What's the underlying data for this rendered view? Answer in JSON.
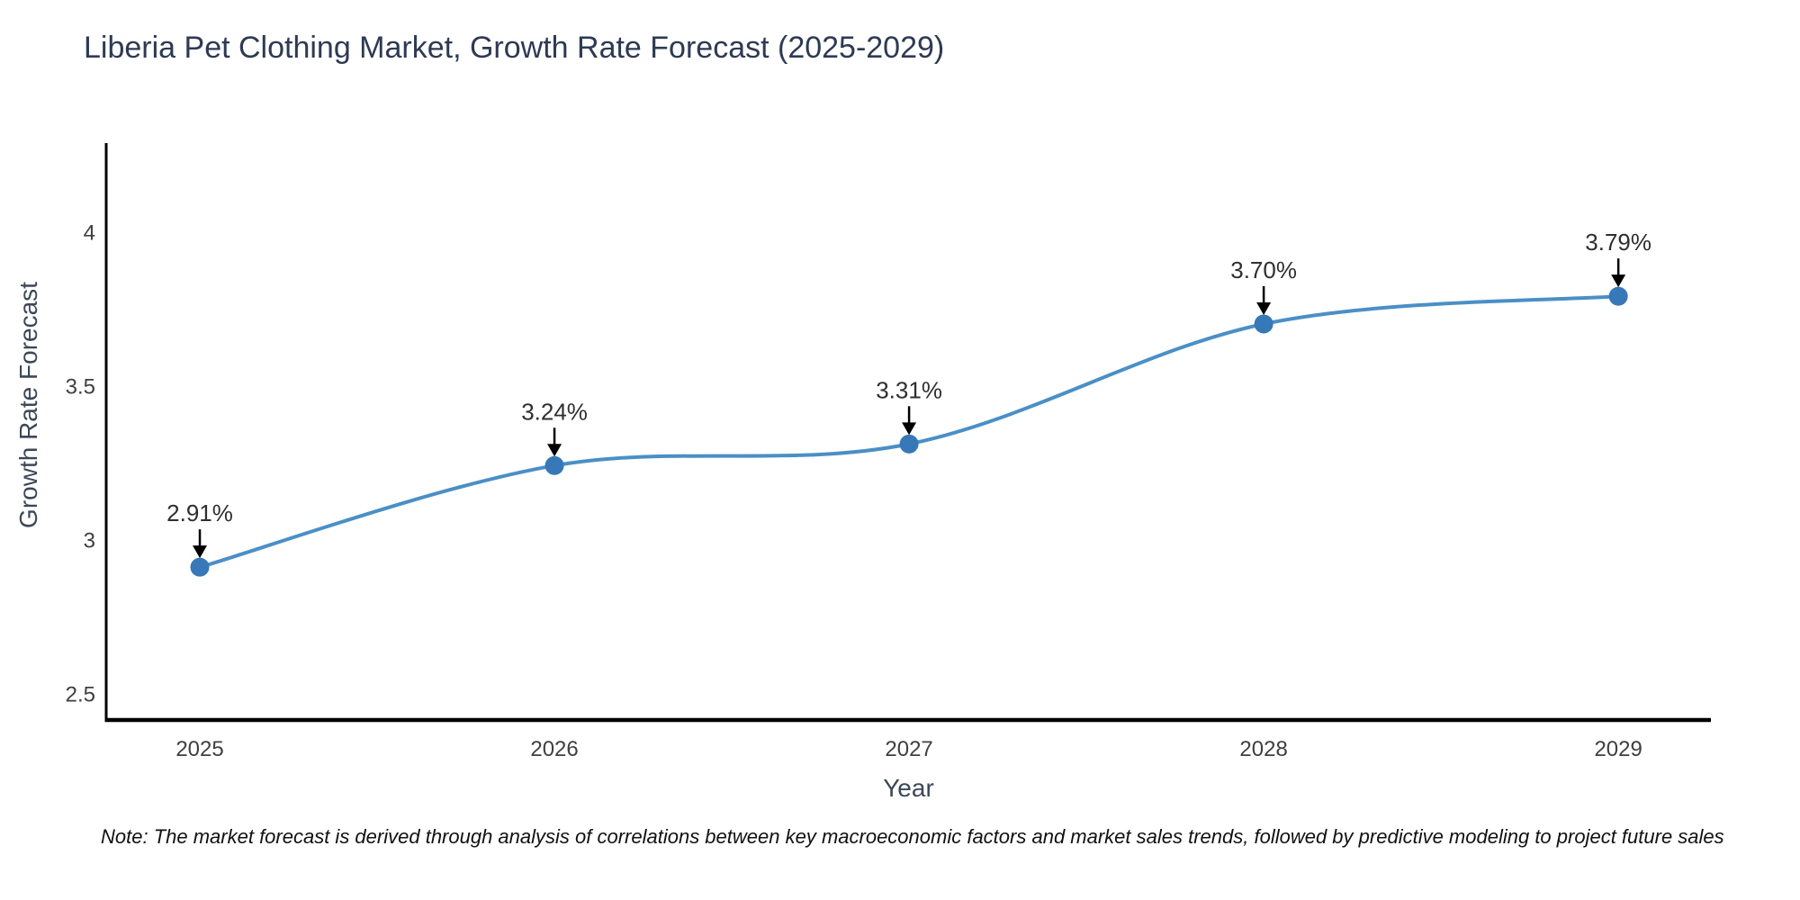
{
  "chart_data": {
    "type": "line",
    "title": "Liberia Pet Clothing Market, Growth Rate Forecast (2025-2029)",
    "xlabel": "Year",
    "ylabel": "Growth Rate Forecast",
    "categories": [
      2025,
      2026,
      2027,
      2028,
      2029
    ],
    "series": [
      {
        "name": "Growth Rate Forecast",
        "values": [
          2.91,
          3.24,
          3.31,
          3.7,
          3.79
        ],
        "point_labels": [
          "2.91%",
          "3.24%",
          "3.31%",
          "3.70%",
          "3.79%"
        ]
      }
    ],
    "xtick_labels": [
      "2025",
      "2026",
      "2027",
      "2028",
      "2029"
    ],
    "ytick_values": [
      2.5,
      3,
      3.5,
      4
    ],
    "ytick_labels": [
      "2.5",
      "3",
      "3.5",
      "4"
    ],
    "xlim": [
      2024.736,
      2029.261
    ],
    "ylim": [
      2.4135,
      4.2875
    ],
    "grid": false,
    "legend": "none",
    "line_shape": "spline",
    "colors": {
      "line": "#4a8fc6",
      "marker": "#3678b8",
      "annotation_text": "#2f2f2f",
      "annotation_arrow": "#000000",
      "axis_spine": "#000000",
      "tick_label": "#3f3f3f",
      "title": "#2e3a53",
      "axis_title": "#3c4757"
    }
  },
  "footnote": {
    "text": "Note: The market forecast is derived through analysis of correlations between key macroeconomic factors and market sales trends, followed by predictive modeling to project future sales"
  }
}
